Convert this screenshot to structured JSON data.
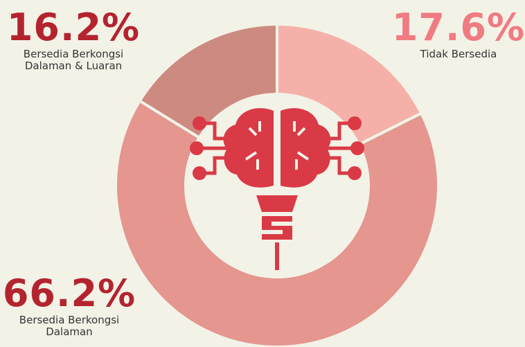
{
  "chart_data": {
    "type": "donut",
    "categories": [
      "Tidak Bersedia",
      "Bersedia Berkongsi Dalaman",
      "Bersedia Berkongsi Dalaman & Luaran"
    ],
    "values": [
      17.6,
      66.2,
      16.2
    ],
    "value_labels": [
      "17.6%",
      "66.2%",
      "16.2%"
    ],
    "colors": [
      "#f5b1a9",
      "#e4968f",
      "#cd8a80"
    ]
  }
}
